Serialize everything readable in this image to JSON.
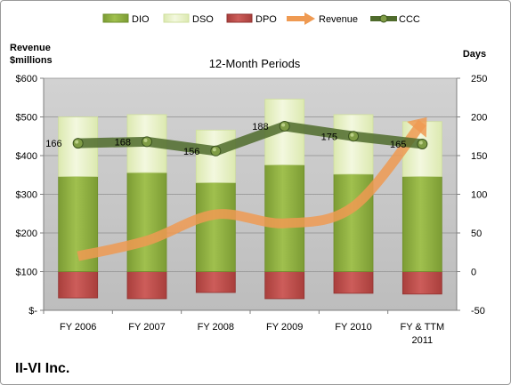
{
  "chart_data": {
    "type": "bar",
    "title": "12-Month Periods",
    "company": "II-VI Inc.",
    "left_axis": {
      "label_line1": "Revenue",
      "label_line2": "$millions",
      "range": [
        0,
        600
      ],
      "ticks": [
        0,
        100,
        200,
        300,
        400,
        500,
        600
      ],
      "tick_labels": [
        "$-",
        "$100",
        "$200",
        "$300",
        "$400",
        "$500",
        "$600"
      ]
    },
    "right_axis": {
      "label": "Days",
      "range": [
        -50,
        250
      ],
      "ticks": [
        -50,
        0,
        50,
        100,
        150,
        200,
        250
      ],
      "tick_labels": [
        "-50",
        "0",
        "50",
        "100",
        "150",
        "200",
        "250"
      ]
    },
    "categories": [
      [
        "FY 2006"
      ],
      [
        "FY 2007"
      ],
      [
        "FY 2008"
      ],
      [
        "FY 2009"
      ],
      [
        "FY 2010"
      ],
      [
        "FY & TTM",
        "2011"
      ]
    ],
    "legend": [
      {
        "key": "dio",
        "name": "DIO"
      },
      {
        "key": "dso",
        "name": "DSO"
      },
      {
        "key": "dpo",
        "name": "DPO"
      },
      {
        "key": "revenue",
        "name": "Revenue"
      },
      {
        "key": "ccc",
        "name": "CCC"
      }
    ],
    "series": {
      "dio": {
        "name": "DIO",
        "axis": "days",
        "values": [
          123,
          128,
          115,
          138,
          126,
          123
        ]
      },
      "dso": {
        "name": "DSO",
        "axis": "days",
        "values": [
          77,
          75,
          68,
          85,
          77,
          71
        ]
      },
      "dpo": {
        "name": "DPO",
        "axis": "days",
        "values": [
          -34,
          -35,
          -27,
          -35,
          -28,
          -29
        ]
      },
      "revenue": {
        "name": "Revenue",
        "axis": "revenue",
        "values": [
          140,
          180,
          248,
          225,
          268,
          485
        ]
      },
      "ccc": {
        "name": "CCC",
        "axis": "days",
        "values": [
          166,
          168,
          156,
          188,
          175,
          165
        ]
      }
    },
    "ccc_labels": [
      "166",
      "168",
      "156",
      "188",
      "175",
      "165"
    ],
    "colors": {
      "dio": "#8fae3e",
      "dio_dark": "#6e8f2a",
      "dso": "#e9f2c8",
      "dso_dark": "#cfdf9e",
      "dpo": "#c0504d",
      "dpo_dark": "#923331",
      "revenue": "#ef9a52",
      "ccc": "#4f6b2c",
      "plot_bg": "#c6c6c6"
    }
  }
}
